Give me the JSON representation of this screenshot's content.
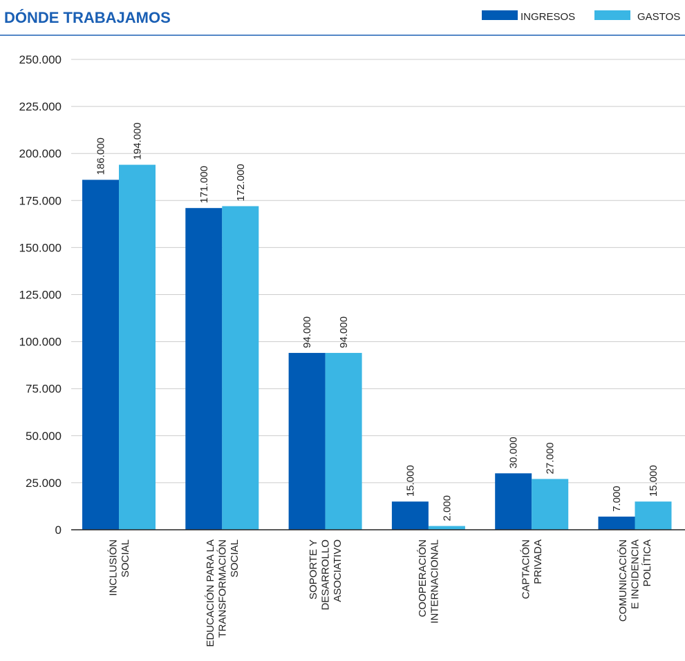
{
  "chart_data": {
    "type": "bar",
    "title": "DÓNDE TRABAJAMOS",
    "xlabel": "",
    "ylabel": "",
    "ylim": [
      0,
      250000
    ],
    "y_ticks": [
      {
        "value": 0,
        "label": "0"
      },
      {
        "value": 25000,
        "label": "25.000"
      },
      {
        "value": 50000,
        "label": "50.000"
      },
      {
        "value": 75000,
        "label": "75.000"
      },
      {
        "value": 100000,
        "label": "100.000"
      },
      {
        "value": 125000,
        "label": "125.000"
      },
      {
        "value": 150000,
        "label": "150.000"
      },
      {
        "value": 175000,
        "label": "175.000"
      },
      {
        "value": 200000,
        "label": "200.000"
      },
      {
        "value": 225000,
        "label": "225.000"
      },
      {
        "value": 250000,
        "label": "250.000"
      }
    ],
    "grid": true,
    "legend_position": "top-right",
    "categories": [
      [
        "INCLUSIÓN",
        "SOCIAL"
      ],
      [
        "EDUCACIÓN PARA LA",
        "TRANSFORMACIÓN",
        "SOCIAL"
      ],
      [
        "SOPORTE Y",
        "DESARROLLO",
        "ASOCIATIVO"
      ],
      [
        "COOPERACIÓN",
        "INTERNACIONAL"
      ],
      [
        "CAPTACIÓN",
        "PRIVADA"
      ],
      [
        "COMUNICACIÓN",
        "E INCIDENCIA",
        "POLÍTICA"
      ]
    ],
    "series": [
      {
        "name": "INGRESOS",
        "color": "#005bb5",
        "values": [
          186000,
          171000,
          94000,
          15000,
          30000,
          7000
        ],
        "labels": [
          "186.000",
          "171.000",
          "94.000",
          "15.000",
          "30.000",
          "7.000"
        ]
      },
      {
        "name": "GASTOS",
        "color": "#3ab6e4",
        "values": [
          194000,
          172000,
          94000,
          2000,
          27000,
          15000
        ],
        "labels": [
          "194.000",
          "172.000",
          "94.000",
          "2.000",
          "27.000",
          "15.000"
        ]
      }
    ],
    "colors": {
      "title": "#1a5fb4",
      "header_rule": "#1a5fb4",
      "grid": "#cccccc",
      "axis": "#222222"
    }
  }
}
